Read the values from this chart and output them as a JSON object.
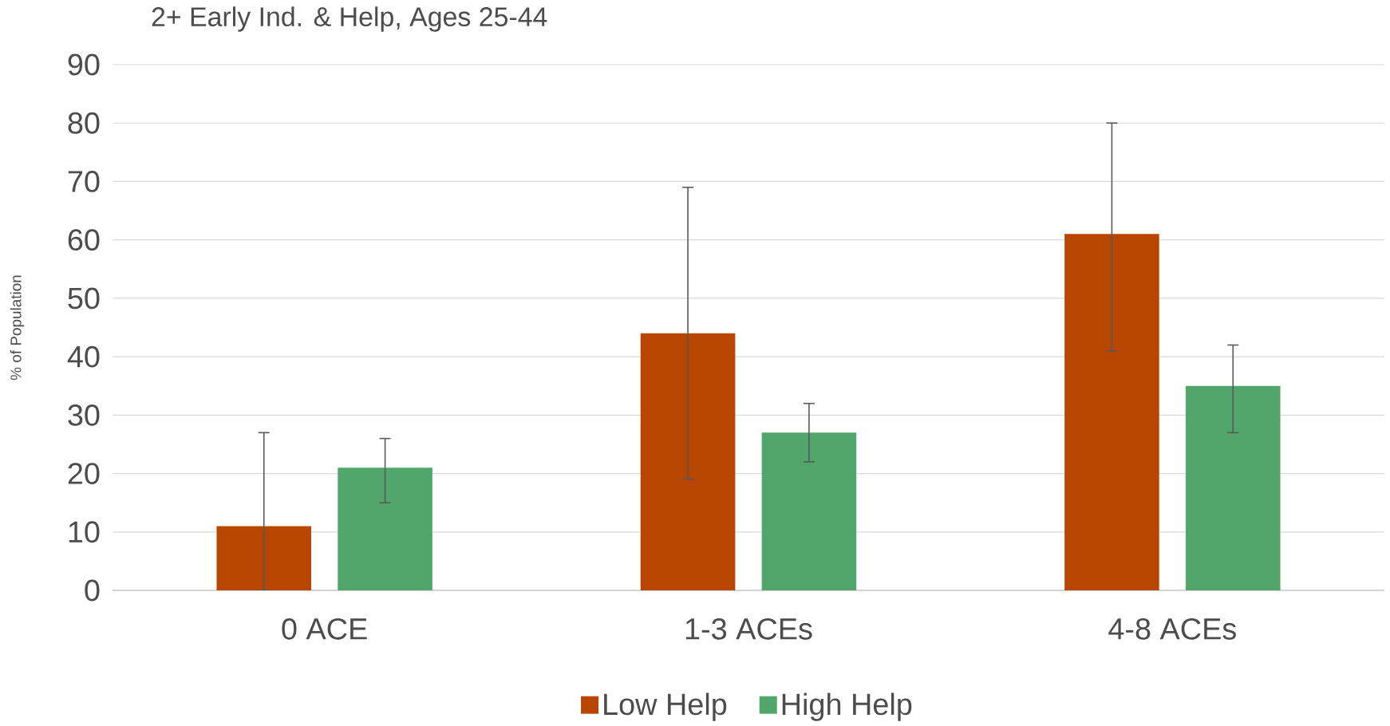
{
  "chart_data": {
    "type": "bar",
    "title": "2+ Early Ind.  & Help, Ages 25-44",
    "ylabel": "% of Population",
    "categories": [
      "0 ACE",
      "1-3 ACEs",
      "4-8 ACEs"
    ],
    "series": [
      {
        "name": "Low Help",
        "color": "#b84600",
        "values": [
          11,
          44,
          61
        ],
        "errors": [
          [
            0,
            27
          ],
          [
            19,
            69
          ],
          [
            41,
            80
          ]
        ]
      },
      {
        "name": "High Help",
        "color": "#52a56b",
        "values": [
          21,
          27,
          35
        ],
        "errors": [
          [
            15,
            26
          ],
          [
            22,
            32
          ],
          [
            27,
            42
          ]
        ]
      }
    ],
    "ylim": [
      0,
      90
    ],
    "yticks": [
      0,
      10,
      20,
      30,
      40,
      50,
      60,
      70,
      80,
      90
    ],
    "grid": "y",
    "legend": "bottom"
  }
}
